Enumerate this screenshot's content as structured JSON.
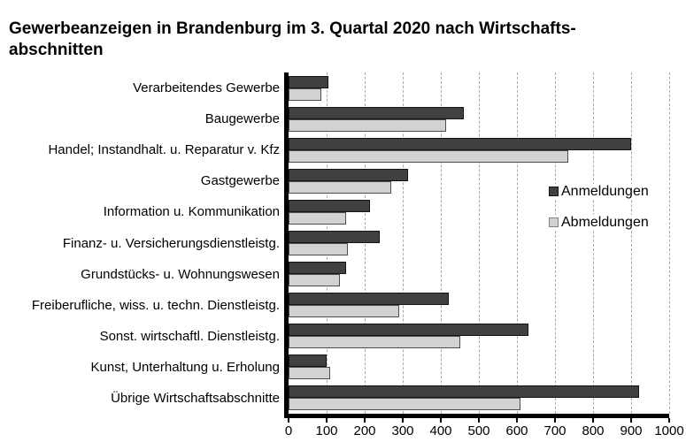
{
  "title": {
    "line1": "Gewerbeanzeigen in Brandenburg im 3. Quartal 2020 nach Wirtschafts-",
    "line2": "abschnitten"
  },
  "colors": {
    "anmeldungen": "#404040",
    "abmeldungen": "#d2d2d2",
    "gridline": "#a8a8a8",
    "axis": "#000000"
  },
  "chart_data": {
    "type": "bar",
    "orientation": "horizontal",
    "title": "Gewerbeanzeigen in Brandenburg im 3. Quartal 2020 nach Wirtschaftsabschnitten",
    "categories": [
      "Verarbeitendes Gewerbe",
      "Baugewerbe",
      "Handel; Instandhalt. u. Reparatur v. Kfz",
      "Gastgewerbe",
      "Information u. Kommunikation",
      "Finanz- u. Versicherungsdienstleistg.",
      "Grundstücks- u. Wohnungswesen",
      "Freiberufliche, wiss. u. techn. Dienstleistg.",
      "Sonst. wirtschaftl. Dienstleistg.",
      "Kunst, Unterhaltung u. Erholung",
      "Übrige Wirtschaftsabschnitte"
    ],
    "series": [
      {
        "name": "Anmeldungen",
        "color": "#404040",
        "values": [
          105,
          460,
          900,
          315,
          215,
          240,
          150,
          420,
          630,
          100,
          920
        ]
      },
      {
        "name": "Abmeldungen",
        "color": "#d2d2d2",
        "values": [
          85,
          415,
          735,
          270,
          150,
          155,
          135,
          290,
          450,
          110,
          610
        ]
      }
    ],
    "xlabel": "",
    "ylabel": "",
    "xlim": [
      0,
      1000
    ],
    "xticks": [
      0,
      100,
      200,
      300,
      400,
      500,
      600,
      700,
      800,
      900,
      1000
    ],
    "grid": "vertical-dashed",
    "legend_position": "middle-right"
  }
}
